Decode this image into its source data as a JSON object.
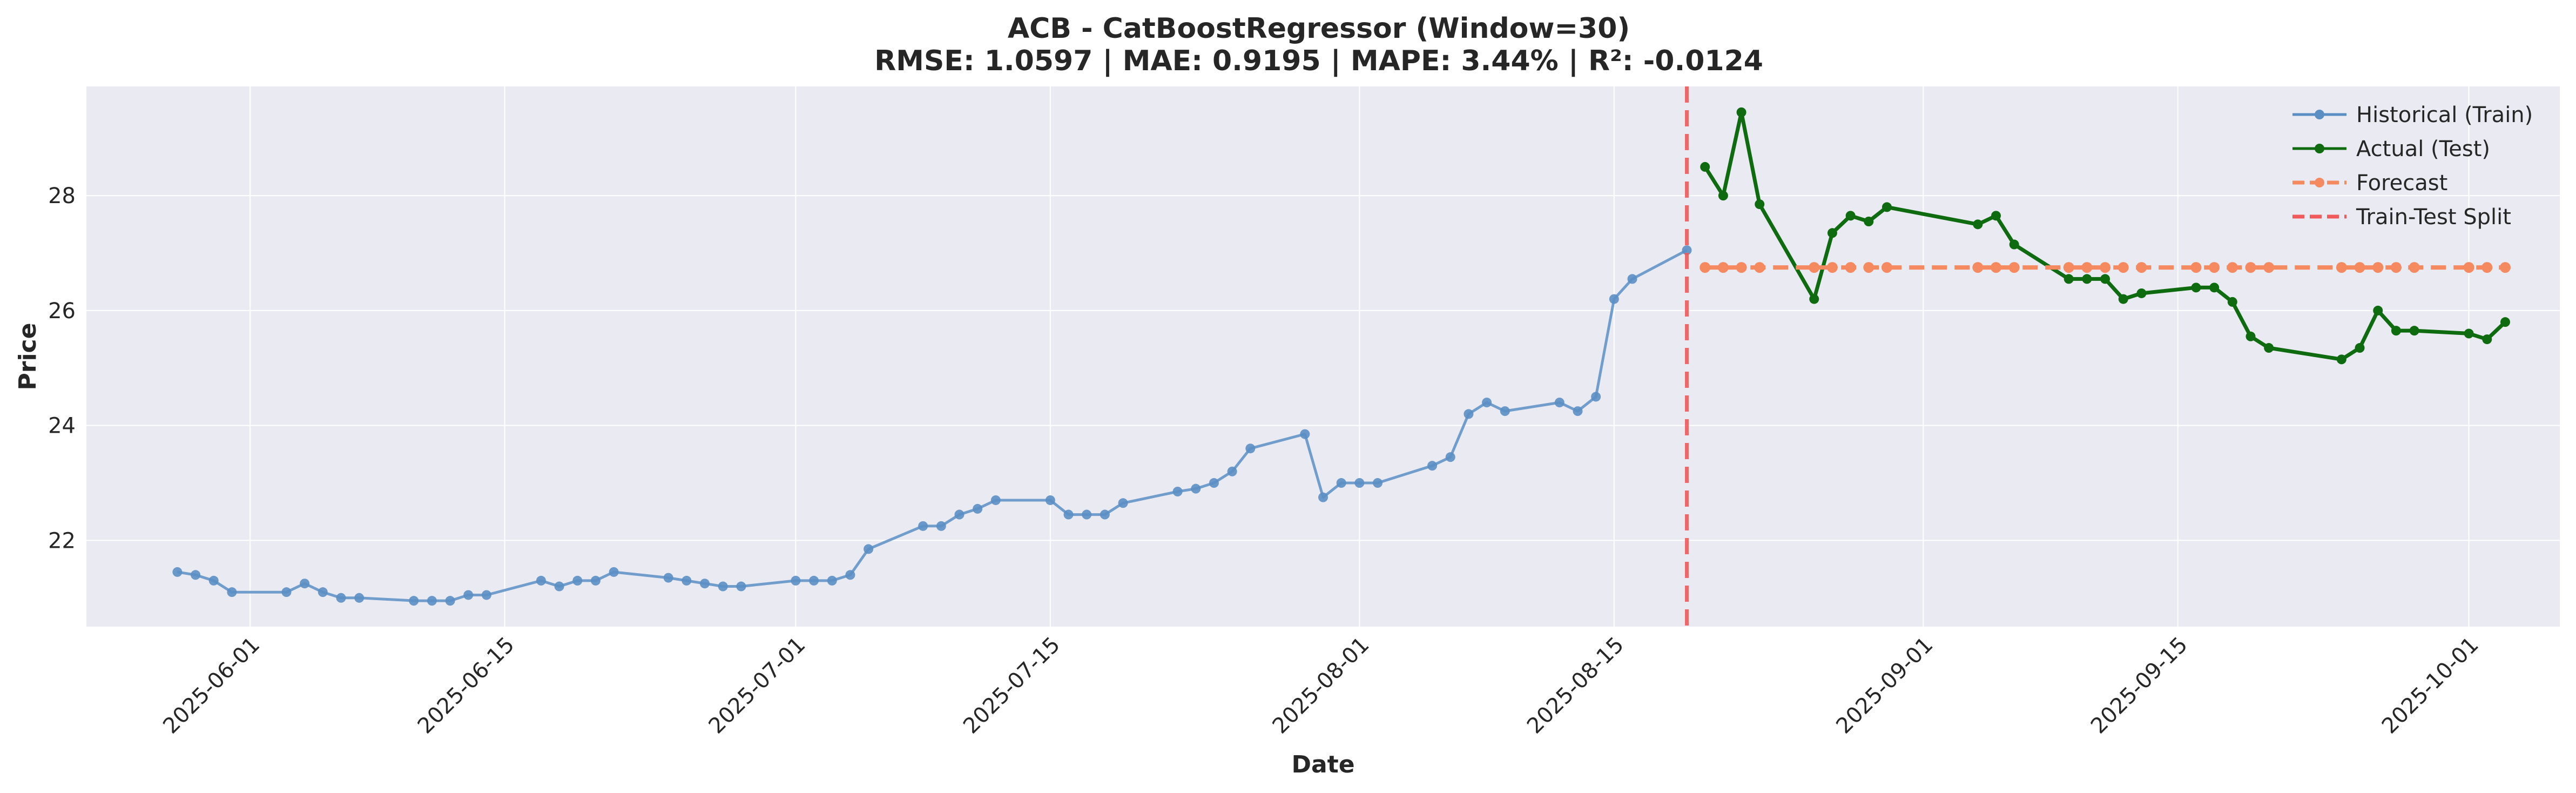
{
  "chart_data": {
    "type": "line",
    "title": "ACB - CatBoostRegressor (Window=30)",
    "subtitle": "RMSE: 1.0597 | MAE: 0.9195 | MAPE: 3.44% | R²: -0.0124",
    "xlabel": "Date",
    "ylabel": "Price",
    "xlim": [
      "2025-05-23",
      "2025-10-06"
    ],
    "ylim": [
      20.5,
      29.9
    ],
    "grid": true,
    "legend_position": "top-right",
    "x_ticks": [
      "2025-06-01",
      "2025-06-15",
      "2025-07-01",
      "2025-07-15",
      "2025-08-01",
      "2025-08-15",
      "2025-09-01",
      "2025-09-15",
      "2025-10-01"
    ],
    "y_ticks": [
      22,
      24,
      26,
      28
    ],
    "split_date": "2025-08-19",
    "series": [
      {
        "name": "Historical (Train)",
        "color": "#5b8fc4",
        "style": "line-markers",
        "points": [
          [
            "2025-05-28",
            21.45
          ],
          [
            "2025-05-29",
            21.4
          ],
          [
            "2025-05-30",
            21.3
          ],
          [
            "2025-05-31",
            21.1
          ],
          [
            "2025-06-03",
            21.1
          ],
          [
            "2025-06-04",
            21.25
          ],
          [
            "2025-06-05",
            21.1
          ],
          [
            "2025-06-06",
            21.0
          ],
          [
            "2025-06-07",
            21.0
          ],
          [
            "2025-06-10",
            20.95
          ],
          [
            "2025-06-11",
            20.95
          ],
          [
            "2025-06-12",
            20.95
          ],
          [
            "2025-06-13",
            21.05
          ],
          [
            "2025-06-14",
            21.05
          ],
          [
            "2025-06-17",
            21.3
          ],
          [
            "2025-06-18",
            21.2
          ],
          [
            "2025-06-19",
            21.3
          ],
          [
            "2025-06-20",
            21.3
          ],
          [
            "2025-06-21",
            21.45
          ],
          [
            "2025-06-24",
            21.35
          ],
          [
            "2025-06-25",
            21.3
          ],
          [
            "2025-06-26",
            21.25
          ],
          [
            "2025-06-27",
            21.2
          ],
          [
            "2025-06-28",
            21.2
          ],
          [
            "2025-07-01",
            21.3
          ],
          [
            "2025-07-02",
            21.3
          ],
          [
            "2025-07-03",
            21.3
          ],
          [
            "2025-07-04",
            21.4
          ],
          [
            "2025-07-05",
            21.85
          ],
          [
            "2025-07-08",
            22.25
          ],
          [
            "2025-07-09",
            22.25
          ],
          [
            "2025-07-10",
            22.45
          ],
          [
            "2025-07-11",
            22.55
          ],
          [
            "2025-07-12",
            22.7
          ],
          [
            "2025-07-15",
            22.7
          ],
          [
            "2025-07-16",
            22.45
          ],
          [
            "2025-07-17",
            22.45
          ],
          [
            "2025-07-18",
            22.45
          ],
          [
            "2025-07-19",
            22.65
          ],
          [
            "2025-07-22",
            22.85
          ],
          [
            "2025-07-23",
            22.9
          ],
          [
            "2025-07-24",
            23.0
          ],
          [
            "2025-07-25",
            23.2
          ],
          [
            "2025-07-26",
            23.6
          ],
          [
            "2025-07-29",
            23.85
          ],
          [
            "2025-07-30",
            22.75
          ],
          [
            "2025-07-31",
            23.0
          ],
          [
            "2025-08-01",
            23.0
          ],
          [
            "2025-08-02",
            23.0
          ],
          [
            "2025-08-05",
            23.3
          ],
          [
            "2025-08-06",
            23.45
          ],
          [
            "2025-08-07",
            24.2
          ],
          [
            "2025-08-08",
            24.4
          ],
          [
            "2025-08-09",
            24.25
          ],
          [
            "2025-08-12",
            24.4
          ],
          [
            "2025-08-13",
            24.25
          ],
          [
            "2025-08-14",
            24.5
          ],
          [
            "2025-08-15",
            26.2
          ],
          [
            "2025-08-16",
            26.55
          ],
          [
            "2025-08-19",
            27.05
          ]
        ]
      },
      {
        "name": "Actual (Test)",
        "color": "#0f6b0f",
        "style": "line-markers",
        "points": [
          [
            "2025-08-20",
            28.5
          ],
          [
            "2025-08-21",
            28.0
          ],
          [
            "2025-08-22",
            29.45
          ],
          [
            "2025-08-23",
            27.85
          ],
          [
            "2025-08-26",
            26.2
          ],
          [
            "2025-08-27",
            27.35
          ],
          [
            "2025-08-28",
            27.65
          ],
          [
            "2025-08-29",
            27.55
          ],
          [
            "2025-08-30",
            27.8
          ],
          [
            "2025-09-04",
            27.5
          ],
          [
            "2025-09-05",
            27.65
          ],
          [
            "2025-09-06",
            27.15
          ],
          [
            "2025-09-09",
            26.55
          ],
          [
            "2025-09-10",
            26.55
          ],
          [
            "2025-09-11",
            26.55
          ],
          [
            "2025-09-12",
            26.2
          ],
          [
            "2025-09-13",
            26.3
          ],
          [
            "2025-09-16",
            26.4
          ],
          [
            "2025-09-17",
            26.4
          ],
          [
            "2025-09-18",
            26.15
          ],
          [
            "2025-09-19",
            25.55
          ],
          [
            "2025-09-20",
            25.35
          ],
          [
            "2025-09-24",
            25.15
          ],
          [
            "2025-09-25",
            25.35
          ],
          [
            "2025-09-26",
            26.0
          ],
          [
            "2025-09-27",
            25.65
          ],
          [
            "2025-09-28",
            25.65
          ],
          [
            "2025-10-01",
            25.6
          ],
          [
            "2025-10-02",
            25.5
          ],
          [
            "2025-10-03",
            25.8
          ]
        ]
      },
      {
        "name": "Forecast",
        "color": "#f58a61",
        "style": "dashed-markers",
        "points": [
          [
            "2025-08-20",
            26.75
          ],
          [
            "2025-08-21",
            26.75
          ],
          [
            "2025-08-22",
            26.75
          ],
          [
            "2025-08-23",
            26.75
          ],
          [
            "2025-08-26",
            26.75
          ],
          [
            "2025-08-27",
            26.75
          ],
          [
            "2025-08-28",
            26.75
          ],
          [
            "2025-08-29",
            26.75
          ],
          [
            "2025-08-30",
            26.75
          ],
          [
            "2025-09-04",
            26.75
          ],
          [
            "2025-09-05",
            26.75
          ],
          [
            "2025-09-06",
            26.75
          ],
          [
            "2025-09-09",
            26.75
          ],
          [
            "2025-09-10",
            26.75
          ],
          [
            "2025-09-11",
            26.75
          ],
          [
            "2025-09-12",
            26.75
          ],
          [
            "2025-09-13",
            26.75
          ],
          [
            "2025-09-16",
            26.75
          ],
          [
            "2025-09-17",
            26.75
          ],
          [
            "2025-09-18",
            26.75
          ],
          [
            "2025-09-19",
            26.75
          ],
          [
            "2025-09-20",
            26.75
          ],
          [
            "2025-09-24",
            26.75
          ],
          [
            "2025-09-25",
            26.75
          ],
          [
            "2025-09-26",
            26.75
          ],
          [
            "2025-09-27",
            26.75
          ],
          [
            "2025-09-28",
            26.75
          ],
          [
            "2025-10-01",
            26.75
          ],
          [
            "2025-10-02",
            26.75
          ],
          [
            "2025-10-03",
            26.75
          ]
        ]
      }
    ],
    "legend": [
      {
        "label": "Historical (Train)",
        "color": "#5b8fc4",
        "style": "line-markers"
      },
      {
        "label": "Actual (Test)",
        "color": "#0f6b0f",
        "style": "line-markers"
      },
      {
        "label": "Forecast",
        "color": "#f58a61",
        "style": "dashed-markers"
      },
      {
        "label": "Train-Test Split",
        "color": "#f05a5a",
        "style": "dashed"
      }
    ]
  }
}
